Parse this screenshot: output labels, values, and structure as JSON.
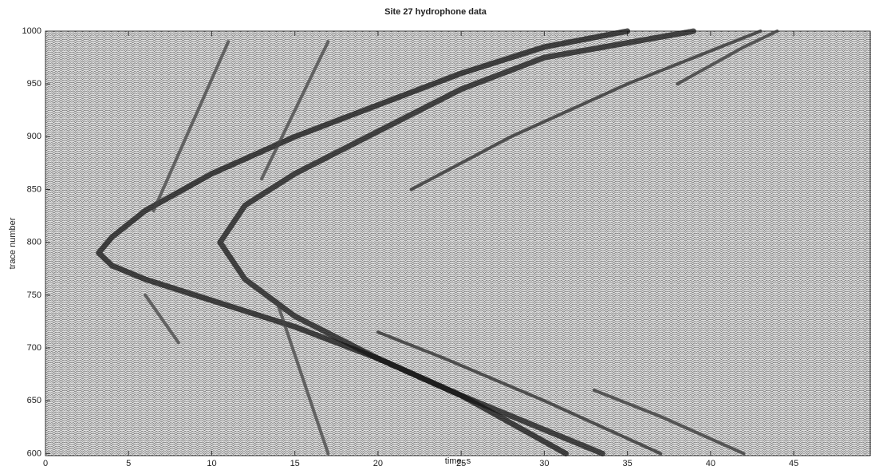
{
  "chart_data": {
    "type": "line",
    "title": "Site 27 hydrophone data",
    "xlabel": "time, s",
    "ylabel": "trace number",
    "xlim": [
      0,
      49.6
    ],
    "ylim": [
      598,
      1000
    ],
    "xticks": [
      0,
      5,
      10,
      15,
      20,
      25,
      30,
      35,
      40,
      45
    ],
    "yticks": [
      600,
      650,
      700,
      750,
      800,
      850,
      900,
      950,
      1000
    ],
    "grid": false,
    "series": [
      {
        "color": "#111111",
        "x": [
          31.3,
          25,
          20,
          15,
          10,
          6,
          4,
          3.2,
          4,
          6,
          10,
          15,
          20,
          25,
          30,
          35
        ],
        "values": [
          600,
          655,
          690,
          720,
          745,
          765,
          778,
          790,
          805,
          830,
          865,
          900,
          930,
          960,
          985,
          1000
        ]
      },
      {
        "color": "#161616",
        "x": [
          33.5,
          25,
          20,
          15,
          12,
          10.5,
          12,
          15,
          20,
          25,
          30,
          39
        ],
        "values": [
          600,
          655,
          690,
          730,
          765,
          800,
          835,
          865,
          905,
          945,
          975,
          1000
        ]
      },
      {
        "color": "#2a2a2a",
        "x": [
          37,
          30,
          24,
          20
        ],
        "values": [
          600,
          650,
          690,
          715
        ]
      },
      {
        "color": "#2a2a2a",
        "x": [
          22,
          28,
          35,
          43
        ],
        "values": [
          850,
          900,
          950,
          1000
        ]
      },
      {
        "color": "#333333",
        "x": [
          42,
          37,
          33
        ],
        "values": [
          600,
          635,
          660
        ]
      },
      {
        "color": "#333333",
        "x": [
          38,
          42,
          44
        ],
        "values": [
          950,
          985,
          1000
        ]
      },
      {
        "color": "#444444",
        "x": [
          6.5,
          11
        ],
        "values": [
          830,
          990
        ]
      },
      {
        "color": "#444444",
        "x": [
          13,
          17
        ],
        "values": [
          860,
          990
        ]
      },
      {
        "color": "#444444",
        "x": [
          6,
          8
        ],
        "values": [
          750,
          705
        ]
      },
      {
        "color": "#444444",
        "x": [
          14,
          17
        ],
        "values": [
          740,
          600
        ]
      }
    ]
  }
}
